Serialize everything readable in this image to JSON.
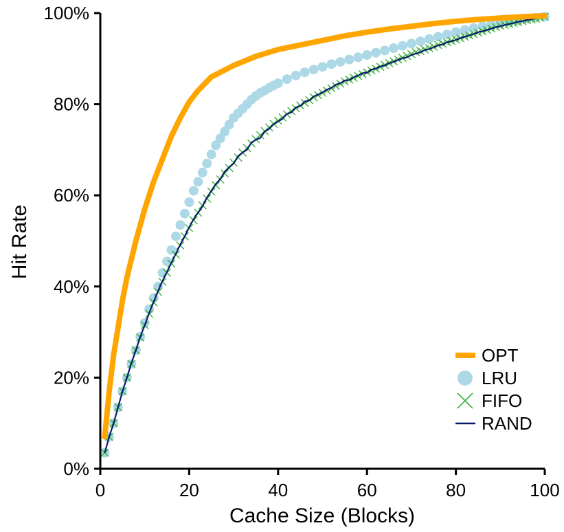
{
  "chart_data": {
    "type": "line",
    "xlabel": "Cache Size (Blocks)",
    "ylabel": "Hit Rate",
    "xlim": [
      0,
      100
    ],
    "ylim": [
      0,
      100
    ],
    "x_ticks": [
      0,
      20,
      40,
      60,
      80,
      100
    ],
    "x_tick_labels": [
      "0",
      "20",
      "40",
      "60",
      "80",
      "100"
    ],
    "y_ticks": [
      0,
      20,
      40,
      60,
      80,
      100
    ],
    "y_tick_labels": [
      "0%",
      "20%",
      "40%",
      "60%",
      "80%",
      "100%"
    ],
    "grid": false,
    "legend_position": "bottom-right",
    "series": [
      {
        "name": "OPT",
        "style": "thick-line",
        "color": "#ffa500",
        "x": [
          1,
          2,
          3,
          4,
          5,
          6,
          8,
          10,
          12,
          14,
          16,
          18,
          20,
          22,
          25,
          28,
          30,
          35,
          40,
          45,
          50,
          55,
          60,
          65,
          70,
          75,
          80,
          85,
          90,
          95,
          100
        ],
        "y": [
          7,
          17,
          25,
          31,
          37,
          42,
          50,
          57,
          63,
          68,
          73,
          77,
          80.5,
          83,
          86,
          87.5,
          88.5,
          90.5,
          92,
          93,
          94,
          95,
          95.8,
          96.5,
          97.1,
          97.7,
          98.2,
          98.6,
          98.9,
          99.2,
          99.4
        ]
      },
      {
        "name": "LRU",
        "style": "dots",
        "color": "#add8e6",
        "x": [
          1,
          2,
          3,
          4,
          5,
          6,
          7,
          8,
          9,
          10,
          11,
          12,
          13,
          14,
          15,
          16,
          17,
          18,
          19,
          20,
          21,
          22,
          23,
          24,
          25,
          26,
          27,
          28,
          29,
          30,
          31,
          32,
          33,
          34,
          35,
          36,
          37,
          38,
          39,
          40,
          42,
          44,
          46,
          48,
          50,
          52,
          54,
          56,
          58,
          60,
          62,
          64,
          66,
          68,
          70,
          72,
          74,
          76,
          78,
          80,
          82,
          84,
          86,
          88,
          90,
          92,
          94,
          96,
          98,
          100
        ],
        "y": [
          3.5,
          7,
          10,
          13.5,
          17,
          20,
          23,
          26,
          29,
          32,
          35,
          37.5,
          40,
          43,
          45.5,
          48,
          51,
          53.5,
          56,
          58.5,
          61,
          63,
          65,
          67,
          69,
          71,
          72.5,
          74,
          75.5,
          77,
          78,
          79,
          80,
          81,
          81.8,
          82.5,
          83,
          83.6,
          84.1,
          84.6,
          85.5,
          86.3,
          87,
          87.6,
          88.2,
          88.8,
          89.3,
          89.8,
          90.3,
          90.8,
          91.3,
          91.8,
          92.3,
          92.8,
          93.3,
          93.8,
          94.3,
          94.8,
          95.3,
          95.8,
          96.3,
          96.7,
          97.1,
          97.5,
          97.9,
          98.2,
          98.5,
          98.8,
          99,
          99.2
        ]
      },
      {
        "name": "FIFO",
        "style": "x-markers",
        "color": "#3cb03c",
        "x": [
          1,
          2,
          3,
          4,
          5,
          6,
          7,
          8,
          9,
          10,
          11,
          12,
          13,
          14,
          15,
          16,
          17,
          18,
          19,
          20,
          21,
          22,
          23,
          24,
          25,
          26,
          27,
          28,
          29,
          30,
          31,
          32,
          33,
          34,
          35,
          36,
          37,
          38,
          39,
          40,
          41,
          42,
          43,
          44,
          45,
          46,
          47,
          48,
          49,
          50,
          51,
          52,
          53,
          54,
          55,
          56,
          57,
          58,
          59,
          60,
          61,
          62,
          63,
          64,
          65,
          66,
          67,
          68,
          69,
          70,
          71,
          72,
          73,
          74,
          75,
          76,
          77,
          78,
          79,
          80,
          81,
          82,
          83,
          84,
          85,
          86,
          87,
          88,
          89,
          90,
          91,
          92,
          93,
          94,
          95,
          96,
          97,
          98,
          99,
          100
        ],
        "y": [
          3.5,
          7,
          10,
          13.5,
          17,
          20,
          23,
          26,
          28.8,
          31.5,
          34,
          36.5,
          38.8,
          41,
          43,
          45,
          47,
          49,
          51,
          52.8,
          54.5,
          56.2,
          57.8,
          59.3,
          60.8,
          62.2,
          63.5,
          64.8,
          66,
          67.2,
          68.3,
          69.4,
          70.4,
          71.4,
          72.3,
          73.2,
          74.1,
          74.9,
          75.7,
          76.4,
          77.1,
          77.8,
          78.5,
          79.1,
          79.7,
          80.3,
          80.9,
          81.5,
          82,
          82.5,
          83,
          83.5,
          84,
          84.5,
          85,
          85.4,
          85.8,
          86.2,
          86.6,
          87,
          87.4,
          87.8,
          88.2,
          88.6,
          89,
          89.4,
          89.8,
          90.2,
          90.6,
          91,
          91.4,
          91.7,
          92,
          92.3,
          92.6,
          93,
          93.3,
          93.6,
          93.9,
          94.2,
          94.5,
          94.8,
          95.1,
          95.4,
          95.7,
          96,
          96.3,
          96.6,
          96.9,
          97.2,
          97.4,
          97.6,
          97.8,
          98,
          98.2,
          98.4,
          98.6,
          98.8,
          99,
          99.2
        ]
      },
      {
        "name": "RAND",
        "style": "thin-line",
        "color": "#0a1a6e",
        "x": [
          1,
          2,
          3,
          4,
          5,
          6,
          7,
          8,
          9,
          10,
          11,
          12,
          13,
          14,
          15,
          16,
          17,
          18,
          19,
          20,
          21,
          22,
          23,
          24,
          25,
          26,
          27,
          28,
          29,
          30,
          31,
          32,
          33,
          34,
          35,
          36,
          37,
          38,
          39,
          40,
          41,
          42,
          43,
          44,
          45,
          46,
          47,
          48,
          49,
          50,
          51,
          52,
          53,
          54,
          55,
          56,
          57,
          58,
          59,
          60,
          61,
          62,
          63,
          64,
          65,
          66,
          67,
          68,
          69,
          70,
          71,
          72,
          73,
          74,
          75,
          76,
          77,
          78,
          79,
          80,
          81,
          82,
          83,
          84,
          85,
          86,
          87,
          88,
          89,
          90,
          91,
          92,
          93,
          94,
          95,
          96,
          97,
          98,
          99,
          100
        ],
        "y": [
          3.5,
          7,
          10,
          13.5,
          17,
          20,
          23.2,
          26,
          29,
          31.5,
          34.2,
          36.6,
          39,
          41.2,
          43.2,
          45.2,
          47.2,
          49.2,
          51,
          53,
          54.8,
          56.2,
          57.6,
          59.5,
          61,
          62.5,
          63.6,
          65.2,
          66.2,
          67,
          68.6,
          69.4,
          70,
          71.6,
          72.2,
          72.6,
          74,
          74.6,
          75.6,
          76.2,
          76.8,
          77.9,
          78.2,
          79.3,
          79.6,
          80.6,
          80.8,
          81.7,
          82.1,
          82.6,
          83.2,
          83.6,
          84.3,
          84.6,
          85.2,
          85.3,
          85.9,
          86.3,
          86.8,
          86.9,
          87.6,
          87.8,
          88.3,
          88.5,
          89,
          89.3,
          89.7,
          90.1,
          90.3,
          90.8,
          91.1,
          91.4,
          91.9,
          92.1,
          92.5,
          92.9,
          93.1,
          93.6,
          93.8,
          94.1,
          94.5,
          94.8,
          95.1,
          95.4,
          95.8,
          96,
          96.3,
          96.6,
          96.9,
          97.1,
          97.4,
          97.6,
          97.8,
          98.1,
          98.2,
          98.5,
          98.6,
          98.9,
          99,
          99.2
        ]
      }
    ]
  }
}
